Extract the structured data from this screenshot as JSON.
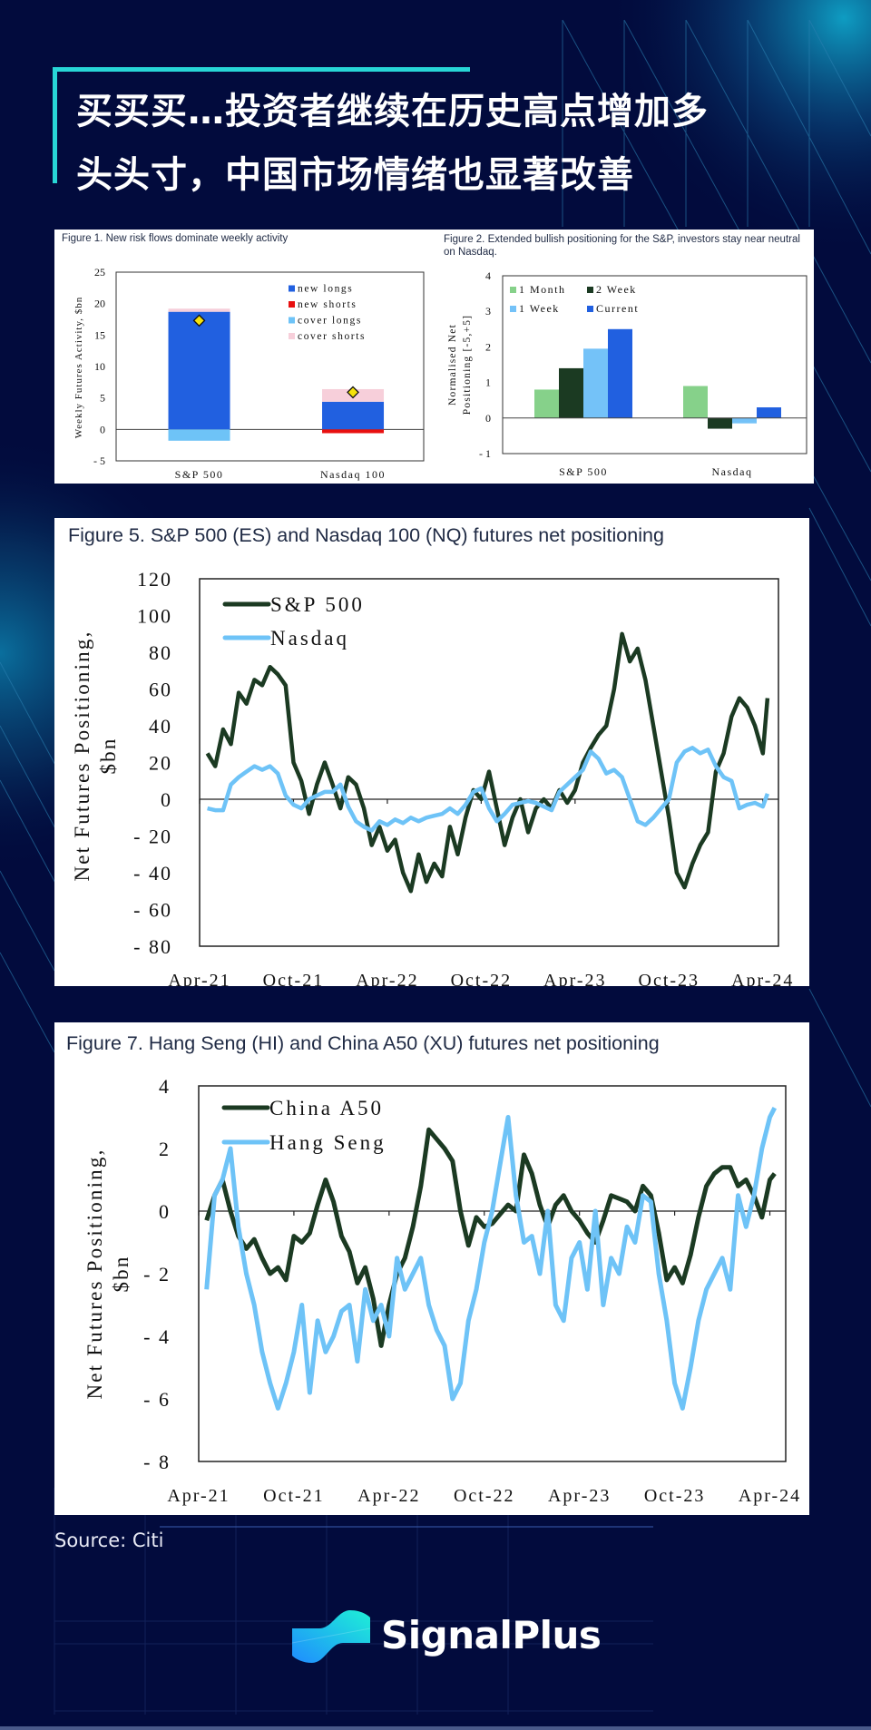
{
  "header": {
    "title_line1": "买买买…投资者继续在历史高点增加多",
    "title_line2": "头头寸，中国市场情绪也显著改善"
  },
  "colors": {
    "background": "#020b3d",
    "accent": "#28d6d6",
    "dark_green": "#1b3a22",
    "light_blue": "#6ec3f7",
    "blue": "#2160e0",
    "red": "#e81010",
    "pink": "#f7cfda",
    "light_green": "#86d18a"
  },
  "footer": {
    "source": "Source: Citi",
    "brand": "SignalPlus"
  },
  "chart_data": [
    {
      "id": "figure1",
      "type": "bar",
      "title": "Figure 1. New risk flows dominate weekly activity",
      "ylabel": "Weekly Futures Activity, $bn",
      "xlabel": "",
      "ylim": [
        -5,
        25
      ],
      "yticks": [
        "25",
        "20",
        "15",
        "10",
        "5",
        "0",
        "- 5"
      ],
      "ytick_values": [
        25,
        20,
        15,
        10,
        5,
        0,
        -5
      ],
      "categories": [
        "S&P 500",
        "Nasdaq 100"
      ],
      "stacked": true,
      "legend_position": "top-right",
      "series": [
        {
          "name": "new longs",
          "color": "#2160e0",
          "values": [
            18.7,
            4.4
          ]
        },
        {
          "name": "new shorts",
          "color": "#e81010",
          "values": [
            0,
            -0.6
          ]
        },
        {
          "name": "cover longs",
          "color": "#6ec3f7",
          "values": [
            -1.8,
            0
          ]
        },
        {
          "name": "cover shorts",
          "color": "#f7cfda",
          "values": [
            0.5,
            2.0
          ]
        }
      ],
      "net_markers": {
        "name": "net",
        "color": "#f5e20a",
        "values": [
          17.3,
          5.9
        ]
      }
    },
    {
      "id": "figure2",
      "type": "bar",
      "title": "Figure 2. Extended bullish positioning for the S&P, investors stay near neutral on Nasdaq.",
      "ylabel_line1": "Normalised Net",
      "ylabel_line2": "Positioning [-5,+5]",
      "xlabel": "",
      "ylim": [
        -1,
        4
      ],
      "yticks": [
        "4",
        "3",
        "2",
        "1",
        "0",
        "- 1"
      ],
      "ytick_values": [
        4,
        3,
        2,
        1,
        0,
        -1
      ],
      "categories": [
        "S&P 500",
        "Nasdaq"
      ],
      "legend_position": "top-left",
      "series": [
        {
          "name": "1 Month",
          "color": "#86d18a",
          "values": [
            0.8,
            0.9
          ]
        },
        {
          "name": "2 Week",
          "color": "#1b3a22",
          "values": [
            1.4,
            -0.3
          ]
        },
        {
          "name": "1 Week",
          "color": "#74c2f8",
          "values": [
            1.95,
            -0.15
          ]
        },
        {
          "name": "Current",
          "color": "#2160e0",
          "values": [
            2.5,
            0.3
          ]
        }
      ]
    },
    {
      "id": "figure5",
      "type": "line",
      "title": "Figure 5. S&P 500 (ES) and Nasdaq 100 (NQ) futures net positioning",
      "ylabel_line1": "Net Futures Positioning,",
      "ylabel_line2": "$bn",
      "xlabel": "",
      "ylim": [
        -80,
        120
      ],
      "yticks": [
        "120",
        "100",
        "80",
        "60",
        "40",
        "20",
        "0",
        "- 20",
        "- 40",
        "- 60",
        "- 80"
      ],
      "ytick_values": [
        120,
        100,
        80,
        60,
        40,
        20,
        0,
        -20,
        -40,
        -60,
        -80
      ],
      "xticks": [
        "Apr-21",
        "Oct-21",
        "Apr-22",
        "Oct-22",
        "Apr-23",
        "Oct-23",
        "Apr-24"
      ],
      "x_unit": "months since Apr-21",
      "xlim": [
        0,
        37
      ],
      "legend_position": "top-left",
      "series": [
        {
          "name": "S&P 500",
          "color": "#1b3a22",
          "x": [
            0.5,
            1,
            1.5,
            2,
            2.5,
            3,
            3.5,
            4,
            4.5,
            5,
            5.5,
            6,
            6.5,
            7,
            7.5,
            8,
            8.5,
            9,
            9.5,
            10,
            10.5,
            11,
            11.5,
            12,
            12.5,
            13,
            13.5,
            14,
            14.5,
            15,
            15.5,
            16,
            16.5,
            17,
            17.5,
            18,
            18.5,
            19,
            19.5,
            20,
            20.5,
            21,
            21.5,
            22,
            22.5,
            23,
            23.5,
            24,
            24.5,
            25,
            25.5,
            26,
            26.5,
            27,
            27.5,
            28,
            28.5,
            29,
            29.5,
            30,
            30.5,
            31,
            31.5,
            32,
            32.5,
            33,
            33.5,
            34,
            34.5,
            35,
            35.5,
            36,
            36.3
          ],
          "values": [
            25,
            18,
            38,
            30,
            58,
            52,
            65,
            62,
            72,
            68,
            62,
            20,
            10,
            -8,
            8,
            20,
            8,
            -5,
            12,
            8,
            -5,
            -25,
            -15,
            -28,
            -22,
            -40,
            -50,
            -30,
            -45,
            -35,
            -42,
            -15,
            -30,
            -10,
            5,
            0,
            15,
            -5,
            -25,
            -10,
            0,
            -18,
            -5,
            0,
            -5,
            5,
            -2,
            5,
            20,
            28,
            35,
            40,
            60,
            90,
            75,
            82,
            65,
            40,
            15,
            -10,
            -40,
            -48,
            -35,
            -25,
            -18,
            15,
            25,
            45,
            55,
            50,
            40,
            25,
            55
          ]
        },
        {
          "name": "Nasdaq",
          "color": "#6ec3f7",
          "x": [
            0.5,
            1,
            1.5,
            2,
            2.5,
            3,
            3.5,
            4,
            4.5,
            5,
            5.5,
            6,
            6.5,
            7,
            7.5,
            8,
            8.5,
            9,
            9.5,
            10,
            10.5,
            11,
            11.5,
            12,
            12.5,
            13,
            13.5,
            14,
            14.5,
            15,
            15.5,
            16,
            16.5,
            17,
            17.5,
            18,
            18.5,
            19,
            19.5,
            20,
            20.5,
            21,
            21.5,
            22,
            22.5,
            23,
            23.5,
            24,
            24.5,
            25,
            25.5,
            26,
            26.5,
            27,
            27.5,
            28,
            28.5,
            29,
            29.5,
            30,
            30.5,
            31,
            31.5,
            32,
            32.5,
            33,
            33.5,
            34,
            34.5,
            35,
            35.5,
            36,
            36.3
          ],
          "values": [
            -5,
            -6,
            -6,
            8,
            12,
            15,
            18,
            16,
            18,
            14,
            2,
            -3,
            -5,
            0,
            2,
            4,
            4,
            8,
            -4,
            -12,
            -15,
            -17,
            -12,
            -14,
            -11,
            -13,
            -10,
            -12,
            -10,
            -9,
            -8,
            -5,
            -8,
            -3,
            4,
            6,
            -5,
            -12,
            -8,
            -3,
            -2,
            -1,
            -2,
            -4,
            -6,
            4,
            8,
            12,
            16,
            26,
            22,
            14,
            16,
            12,
            0,
            -12,
            -14,
            -10,
            -5,
            0,
            20,
            26,
            28,
            25,
            27,
            18,
            12,
            10,
            -5,
            -3,
            -2,
            -4,
            3
          ]
        }
      ]
    },
    {
      "id": "figure7",
      "type": "line",
      "title": "Figure 7. Hang Seng (HI) and China A50 (XU) futures net positioning",
      "ylabel_line1": "Net Futures Positioning,",
      "ylabel_line2": "$bn",
      "xlabel": "",
      "ylim": [
        -8,
        4
      ],
      "yticks": [
        "4",
        "2",
        "0",
        "- 2",
        "- 4",
        "- 6",
        "- 8"
      ],
      "ytick_values": [
        4,
        2,
        0,
        -2,
        -4,
        -6,
        -8
      ],
      "xticks": [
        "Apr-21",
        "Oct-21",
        "Apr-22",
        "Oct-22",
        "Apr-23",
        "Oct-23",
        "Apr-24"
      ],
      "x_unit": "months since Apr-21",
      "xlim": [
        0,
        37
      ],
      "legend_position": "top-left",
      "series": [
        {
          "name": "China A50",
          "color": "#1b3a22",
          "x": [
            0.5,
            1,
            1.5,
            2,
            2.5,
            3,
            3.5,
            4,
            4.5,
            5,
            5.5,
            6,
            6.5,
            7,
            7.5,
            8,
            8.5,
            9,
            9.5,
            10,
            10.5,
            11,
            11.5,
            12,
            12.5,
            13,
            13.5,
            14,
            14.5,
            15,
            15.5,
            16,
            16.5,
            17,
            17.5,
            18,
            18.5,
            19,
            19.5,
            20,
            20.5,
            21,
            21.5,
            22,
            22.5,
            23,
            23.5,
            24,
            24.5,
            25,
            25.5,
            26,
            26.5,
            27,
            27.5,
            28,
            28.5,
            29,
            29.5,
            30,
            30.5,
            31,
            31.5,
            32,
            32.5,
            33,
            33.5,
            34,
            34.5,
            35,
            35.5,
            36,
            36.3
          ],
          "values": [
            -0.3,
            0.5,
            1.0,
            0.0,
            -0.8,
            -1.2,
            -0.9,
            -1.5,
            -2.0,
            -1.8,
            -2.2,
            -0.8,
            -1.0,
            -0.7,
            0.2,
            1.0,
            0.3,
            -0.8,
            -1.3,
            -2.3,
            -1.8,
            -2.8,
            -4.3,
            -3.0,
            -2.0,
            -1.5,
            -0.5,
            0.8,
            2.6,
            2.3,
            2.0,
            1.6,
            0.0,
            -1.1,
            -0.2,
            -0.5,
            -0.4,
            -0.1,
            0.2,
            0.0,
            1.8,
            1.2,
            0.2,
            -0.5,
            0.2,
            0.5,
            0.0,
            -0.3,
            -0.7,
            -1.0,
            -0.3,
            0.5,
            0.4,
            0.3,
            0.0,
            0.8,
            0.5,
            -0.7,
            -2.2,
            -1.8,
            -2.3,
            -1.4,
            -0.2,
            0.8,
            1.2,
            1.4,
            1.4,
            0.8,
            1.0,
            0.5,
            -0.2,
            1.0,
            1.2
          ]
        },
        {
          "name": "Hang Seng",
          "color": "#6ec3f7",
          "x": [
            0.5,
            1,
            1.5,
            2,
            2.5,
            3,
            3.5,
            4,
            4.5,
            5,
            5.5,
            6,
            6.5,
            7,
            7.5,
            8,
            8.5,
            9,
            9.5,
            10,
            10.5,
            11,
            11.5,
            12,
            12.5,
            13,
            13.5,
            14,
            14.5,
            15,
            15.5,
            16,
            16.5,
            17,
            17.5,
            18,
            18.5,
            19,
            19.5,
            20,
            20.5,
            21,
            21.5,
            22,
            22.5,
            23,
            23.5,
            24,
            24.5,
            25,
            25.5,
            26,
            26.5,
            27,
            27.5,
            28,
            28.5,
            29,
            29.5,
            30,
            30.5,
            31,
            31.5,
            32,
            32.5,
            33,
            33.5,
            34,
            34.5,
            35,
            35.5,
            36,
            36.3
          ],
          "values": [
            -2.5,
            0.5,
            1.0,
            2.0,
            -0.5,
            -2.0,
            -3.0,
            -4.5,
            -5.5,
            -6.3,
            -5.5,
            -4.5,
            -3.0,
            -5.8,
            -3.5,
            -4.5,
            -4.0,
            -3.2,
            -3.0,
            -4.8,
            -2.5,
            -3.5,
            -3.0,
            -4.0,
            -1.5,
            -2.5,
            -2.0,
            -1.5,
            -3.0,
            -3.8,
            -4.3,
            -6.0,
            -5.5,
            -3.5,
            -2.5,
            -1.0,
            0.0,
            1.5,
            3.0,
            0.5,
            -1.0,
            -0.8,
            -2.0,
            0.0,
            -3.0,
            -3.5,
            -1.5,
            -1.0,
            -2.5,
            0.0,
            -3.0,
            -1.5,
            -2.0,
            -0.5,
            -1.0,
            0.5,
            0.3,
            -2.0,
            -3.5,
            -5.5,
            -6.3,
            -5.0,
            -3.5,
            -2.5,
            -2.0,
            -1.5,
            -2.5,
            0.5,
            -0.5,
            0.5,
            2.0,
            3.0,
            3.3
          ]
        }
      ]
    }
  ]
}
